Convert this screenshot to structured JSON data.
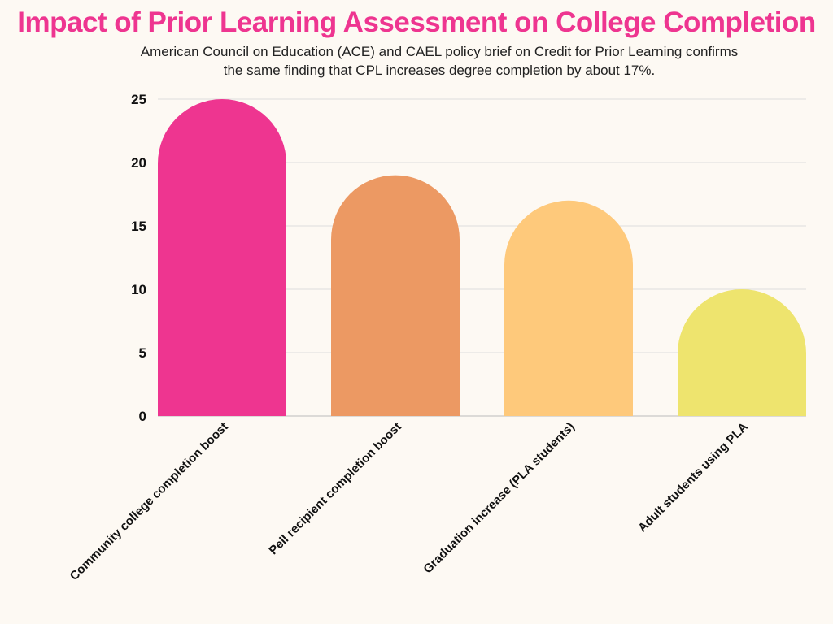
{
  "chart_data": {
    "type": "bar",
    "title": "Impact of Prior Learning Assessment on College Completion",
    "subtitle": [
      "American Council on Education (ACE) and CAEL policy brief on Credit for Prior Learning confirms",
      "the same finding that CPL increases degree completion by about 17%."
    ],
    "categories": [
      "Community college completion boost",
      "Pell recipient completion boost",
      "Graduation increase (PLA students)",
      "Adult students using PLA"
    ],
    "values": [
      25,
      19,
      17,
      10
    ],
    "colors": [
      "#ee3590",
      "#ec9963",
      "#fec97b",
      "#eee46e"
    ],
    "yticks": [
      "0",
      "5",
      "10",
      "15",
      "20",
      "25"
    ],
    "ylim": [
      0,
      25
    ],
    "xlabel": "",
    "ylabel": "",
    "grid": true,
    "legend": "none"
  }
}
